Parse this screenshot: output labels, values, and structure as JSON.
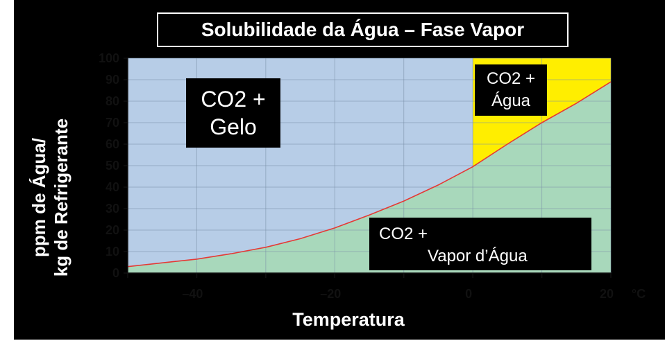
{
  "title": "Solubilidade da Água – Fase Vapor",
  "chart_data": {
    "type": "area",
    "title": "Solubilidade da Água – Fase Vapor",
    "xlabel": "Temperatura",
    "x_unit": "°C",
    "ylabel_lines": [
      "ppm de Água/",
      "kg de Refrigerante"
    ],
    "xlim": [
      -50,
      20
    ],
    "ylim": [
      0,
      100
    ],
    "x_ticks": [
      -40,
      -20,
      0,
      20
    ],
    "x_tick_labels": [
      "–40",
      "–20",
      "0",
      "20"
    ],
    "y_ticks": [
      0,
      10,
      20,
      30,
      40,
      50,
      60,
      70,
      80,
      90,
      100
    ],
    "grid": true,
    "series": [
      {
        "x": [
          -50,
          -40,
          -35,
          -30,
          -25,
          -20,
          -15,
          -10,
          -5,
          0,
          5,
          10,
          15,
          20
        ],
        "values": [
          3,
          6.5,
          9,
          12,
          16,
          21,
          27,
          33.5,
          41,
          49.5,
          60,
          70,
          79,
          89
        ]
      }
    ],
    "regions": [
      {
        "label_lines": [
          "CO2 +",
          "Gelo"
        ],
        "color": "#b7cde7"
      },
      {
        "label_lines": [
          "CO2 +",
          "Água"
        ],
        "color": "#ffee00"
      },
      {
        "label_lines": [
          "CO2 +",
          "Vapor d’Água"
        ],
        "color": "#a8d8bb"
      }
    ],
    "curve_color": "#e53935"
  }
}
